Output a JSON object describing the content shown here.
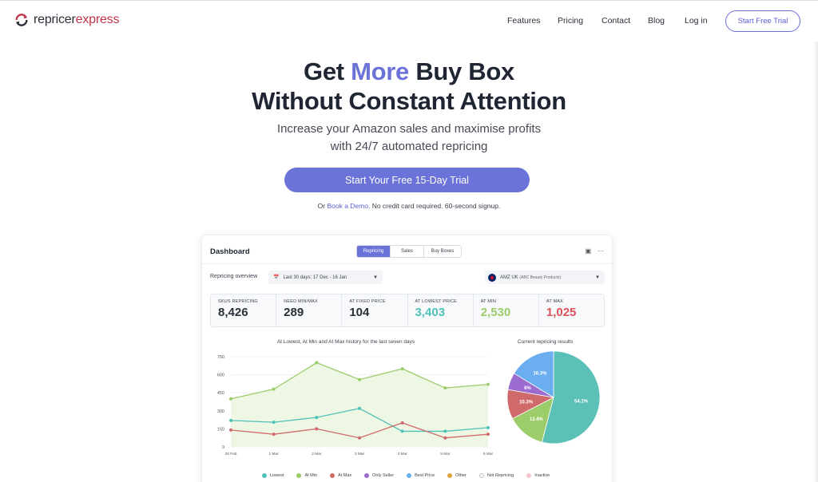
{
  "header": {
    "logo_part1": "repricer",
    "logo_part2": "express",
    "nav": [
      "Features",
      "Pricing",
      "Contact",
      "Blog",
      "Log in"
    ],
    "cta": "Start Free Trial"
  },
  "hero": {
    "title_pre": "Get ",
    "title_accent": "More",
    "title_post": " Buy Box",
    "title_line2": "Without Constant Attention",
    "subtitle_line1": "Increase your Amazon sales and maximise profits",
    "subtitle_line2": "with 24/7 automated repricing",
    "cta": "Start Your Free 15-Day Trial",
    "note_pre": "Or ",
    "note_link": "Book a Demo.",
    "note_post": " No credit card required. 60-second signup."
  },
  "dashboard": {
    "title": "Dashboard",
    "tabs": [
      "Repricing",
      "Sales",
      "Buy Boxes"
    ],
    "active_tab": "Repricing",
    "overview_label": "Repricing overview",
    "date_range": "Last 30 days: 17 Dec - 16 Jan",
    "marketplace": "AMZ UK",
    "marketplace_sub": "(ABC Beauty Products)",
    "stats": [
      {
        "label": "SKUS REPRICING",
        "value": "8,426",
        "color": "#2b2f3a"
      },
      {
        "label": "NEED MIN/MAX",
        "value": "289",
        "color": "#2b2f3a"
      },
      {
        "label": "AT FIXED PRICE",
        "value": "104",
        "color": "#2b2f3a"
      },
      {
        "label": "AT LOWEST PRICE",
        "value": "3,403",
        "color": "#4fc1b8"
      },
      {
        "label": "AT MIN",
        "value": "2,530",
        "color": "#9dcc6a"
      },
      {
        "label": "AT MAX",
        "value": "1,025",
        "color": "#d9525c"
      }
    ],
    "line_chart_title": "At Lowest, At Min and At Max history for the last seven days",
    "pie_chart_title": "Current repricing results",
    "legend": [
      {
        "label": "Lowest",
        "color": "#4fc1b8"
      },
      {
        "label": "At Min",
        "color": "#9dcc6a"
      },
      {
        "label": "At Max",
        "color": "#d06a6a"
      },
      {
        "label": "Only Seller",
        "color": "#9b6bd0"
      },
      {
        "label": "Best Price",
        "color": "#6aaef0"
      },
      {
        "label": "Other",
        "color": "#e3a33a"
      },
      {
        "label": "Not Repricing",
        "color": "#ffffff"
      },
      {
        "label": "Inactive",
        "color": "#f5c6d0"
      }
    ]
  },
  "chart_data": [
    {
      "type": "line",
      "title": "At Lowest, At Min and At Max history for the last seven days",
      "categories": [
        "28 Feb",
        "1 Mar",
        "2 Mar",
        "3 Mar",
        "4 Mar",
        "5 Mar",
        "6 Mar"
      ],
      "yticks": [
        0,
        150,
        300,
        450,
        600,
        750
      ],
      "ylim": [
        0,
        750
      ],
      "grid": true,
      "series": [
        {
          "name": "At Min",
          "color": "#9dcc6a",
          "values": [
            400,
            480,
            700,
            560,
            650,
            490,
            520
          ]
        },
        {
          "name": "Lowest",
          "color": "#4fc1b8",
          "values": [
            220,
            205,
            245,
            320,
            130,
            130,
            160
          ]
        },
        {
          "name": "At Max",
          "color": "#d06a6a",
          "values": [
            140,
            105,
            150,
            75,
            200,
            75,
            105
          ]
        }
      ]
    },
    {
      "type": "pie",
      "title": "Current repricing results",
      "slices": [
        {
          "name": "Lowest",
          "value": 54.1,
          "color": "#5bc0b5"
        },
        {
          "name": "At Min",
          "value": 13.4,
          "color": "#9dcc6a"
        },
        {
          "name": "At Max",
          "value": 10.3,
          "color": "#d06a6a"
        },
        {
          "name": "Only Seller",
          "value": 6,
          "color": "#9b6bd0"
        },
        {
          "name": "Best Price",
          "value": 16.3,
          "color": "#6aaef0"
        }
      ]
    }
  ]
}
